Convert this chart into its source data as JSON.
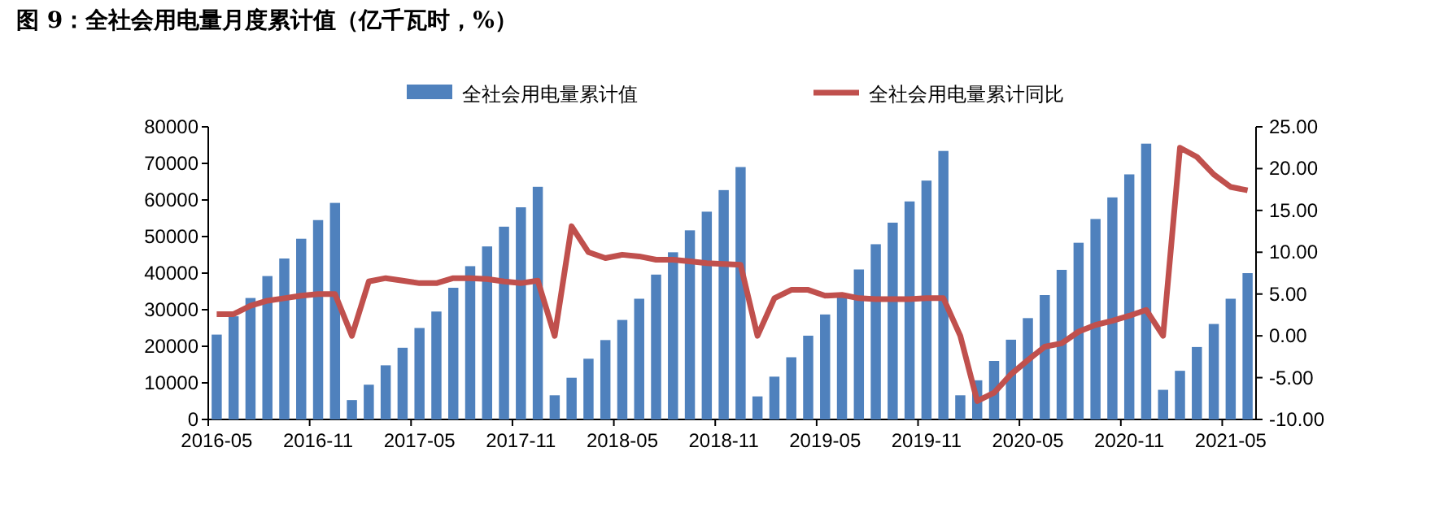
{
  "chart_data": {
    "type": "bar",
    "title": "图 9：全社会用电量月度累计值（亿千瓦时，%）",
    "categories": [
      "2016-05",
      null,
      null,
      null,
      null,
      null,
      "2016-11",
      null,
      null,
      null,
      null,
      null,
      "2017-05",
      null,
      null,
      null,
      null,
      null,
      "2017-11",
      null,
      null,
      null,
      null,
      null,
      "2018-05",
      null,
      null,
      null,
      null,
      null,
      "2018-11",
      null,
      null,
      null,
      null,
      null,
      "2019-05",
      null,
      null,
      null,
      null,
      null,
      "2019-11",
      null,
      null,
      null,
      null,
      null,
      "2020-05",
      null,
      null,
      null,
      null,
      null,
      "2020-11",
      null,
      null,
      null,
      null,
      null,
      "2021-05",
      null
    ],
    "series": [
      {
        "name": "全社会用电量累计值",
        "color": "#4f81bd",
        "values": [
          23200,
          28200,
          33200,
          39200,
          44000,
          49400,
          54500,
          59200,
          5300,
          9500,
          14800,
          19600,
          25000,
          29500,
          36000,
          41900,
          47300,
          52700,
          58000,
          63600,
          6600,
          11400,
          16600,
          21700,
          27200,
          33000,
          39600,
          45700,
          51700,
          56800,
          62700,
          69000,
          6300,
          11700,
          17000,
          22900,
          28700,
          33700,
          41000,
          47900,
          53800,
          59600,
          65300,
          73400,
          6600,
          10700,
          16000,
          21800,
          27700,
          34000,
          40900,
          48300,
          54800,
          60700,
          67000,
          75400,
          8100,
          13300,
          19800,
          26100,
          33000,
          40000
        ]
      },
      {
        "name": "全社会用电量累计同比",
        "type": "line",
        "axis": "y2",
        "color": "#c0504d",
        "values": [
          2.6,
          2.6,
          3.6,
          4.2,
          4.5,
          4.8,
          5.0,
          5.0,
          0,
          6.5,
          6.9,
          6.6,
          6.3,
          6.3,
          6.9,
          6.9,
          6.8,
          6.5,
          6.3,
          6.6,
          0,
          13.1,
          10.0,
          9.3,
          9.7,
          9.5,
          9.1,
          9.1,
          8.9,
          8.7,
          8.6,
          8.5,
          0,
          4.5,
          5.5,
          5.5,
          4.8,
          4.9,
          4.5,
          4.4,
          4.4,
          4.4,
          4.5,
          4.5,
          0,
          -7.8,
          -6.8,
          -4.6,
          -2.9,
          -1.3,
          -0.9,
          0.5,
          1.3,
          1.8,
          2.4,
          3.1,
          0,
          22.5,
          21.4,
          19.3,
          17.8,
          17.4
        ]
      }
    ],
    "ylim": [
      0,
      80000
    ],
    "yticks": [
      0,
      10000,
      20000,
      30000,
      40000,
      50000,
      60000,
      70000,
      80000
    ],
    "y2lim": [
      -10,
      25
    ],
    "y2ticks": [
      {
        "value": -10,
        "label": "-10.00"
      },
      {
        "value": -5,
        "label": "-5.00"
      },
      {
        "value": 0,
        "label": "0.00"
      },
      {
        "value": 5,
        "label": "5.00"
      },
      {
        "value": 10,
        "label": "10.00"
      },
      {
        "value": 15,
        "label": "15.00"
      },
      {
        "value": 20,
        "label": "20.00"
      },
      {
        "value": 25,
        "label": "25.00"
      }
    ],
    "legend": "top",
    "grid": false
  }
}
